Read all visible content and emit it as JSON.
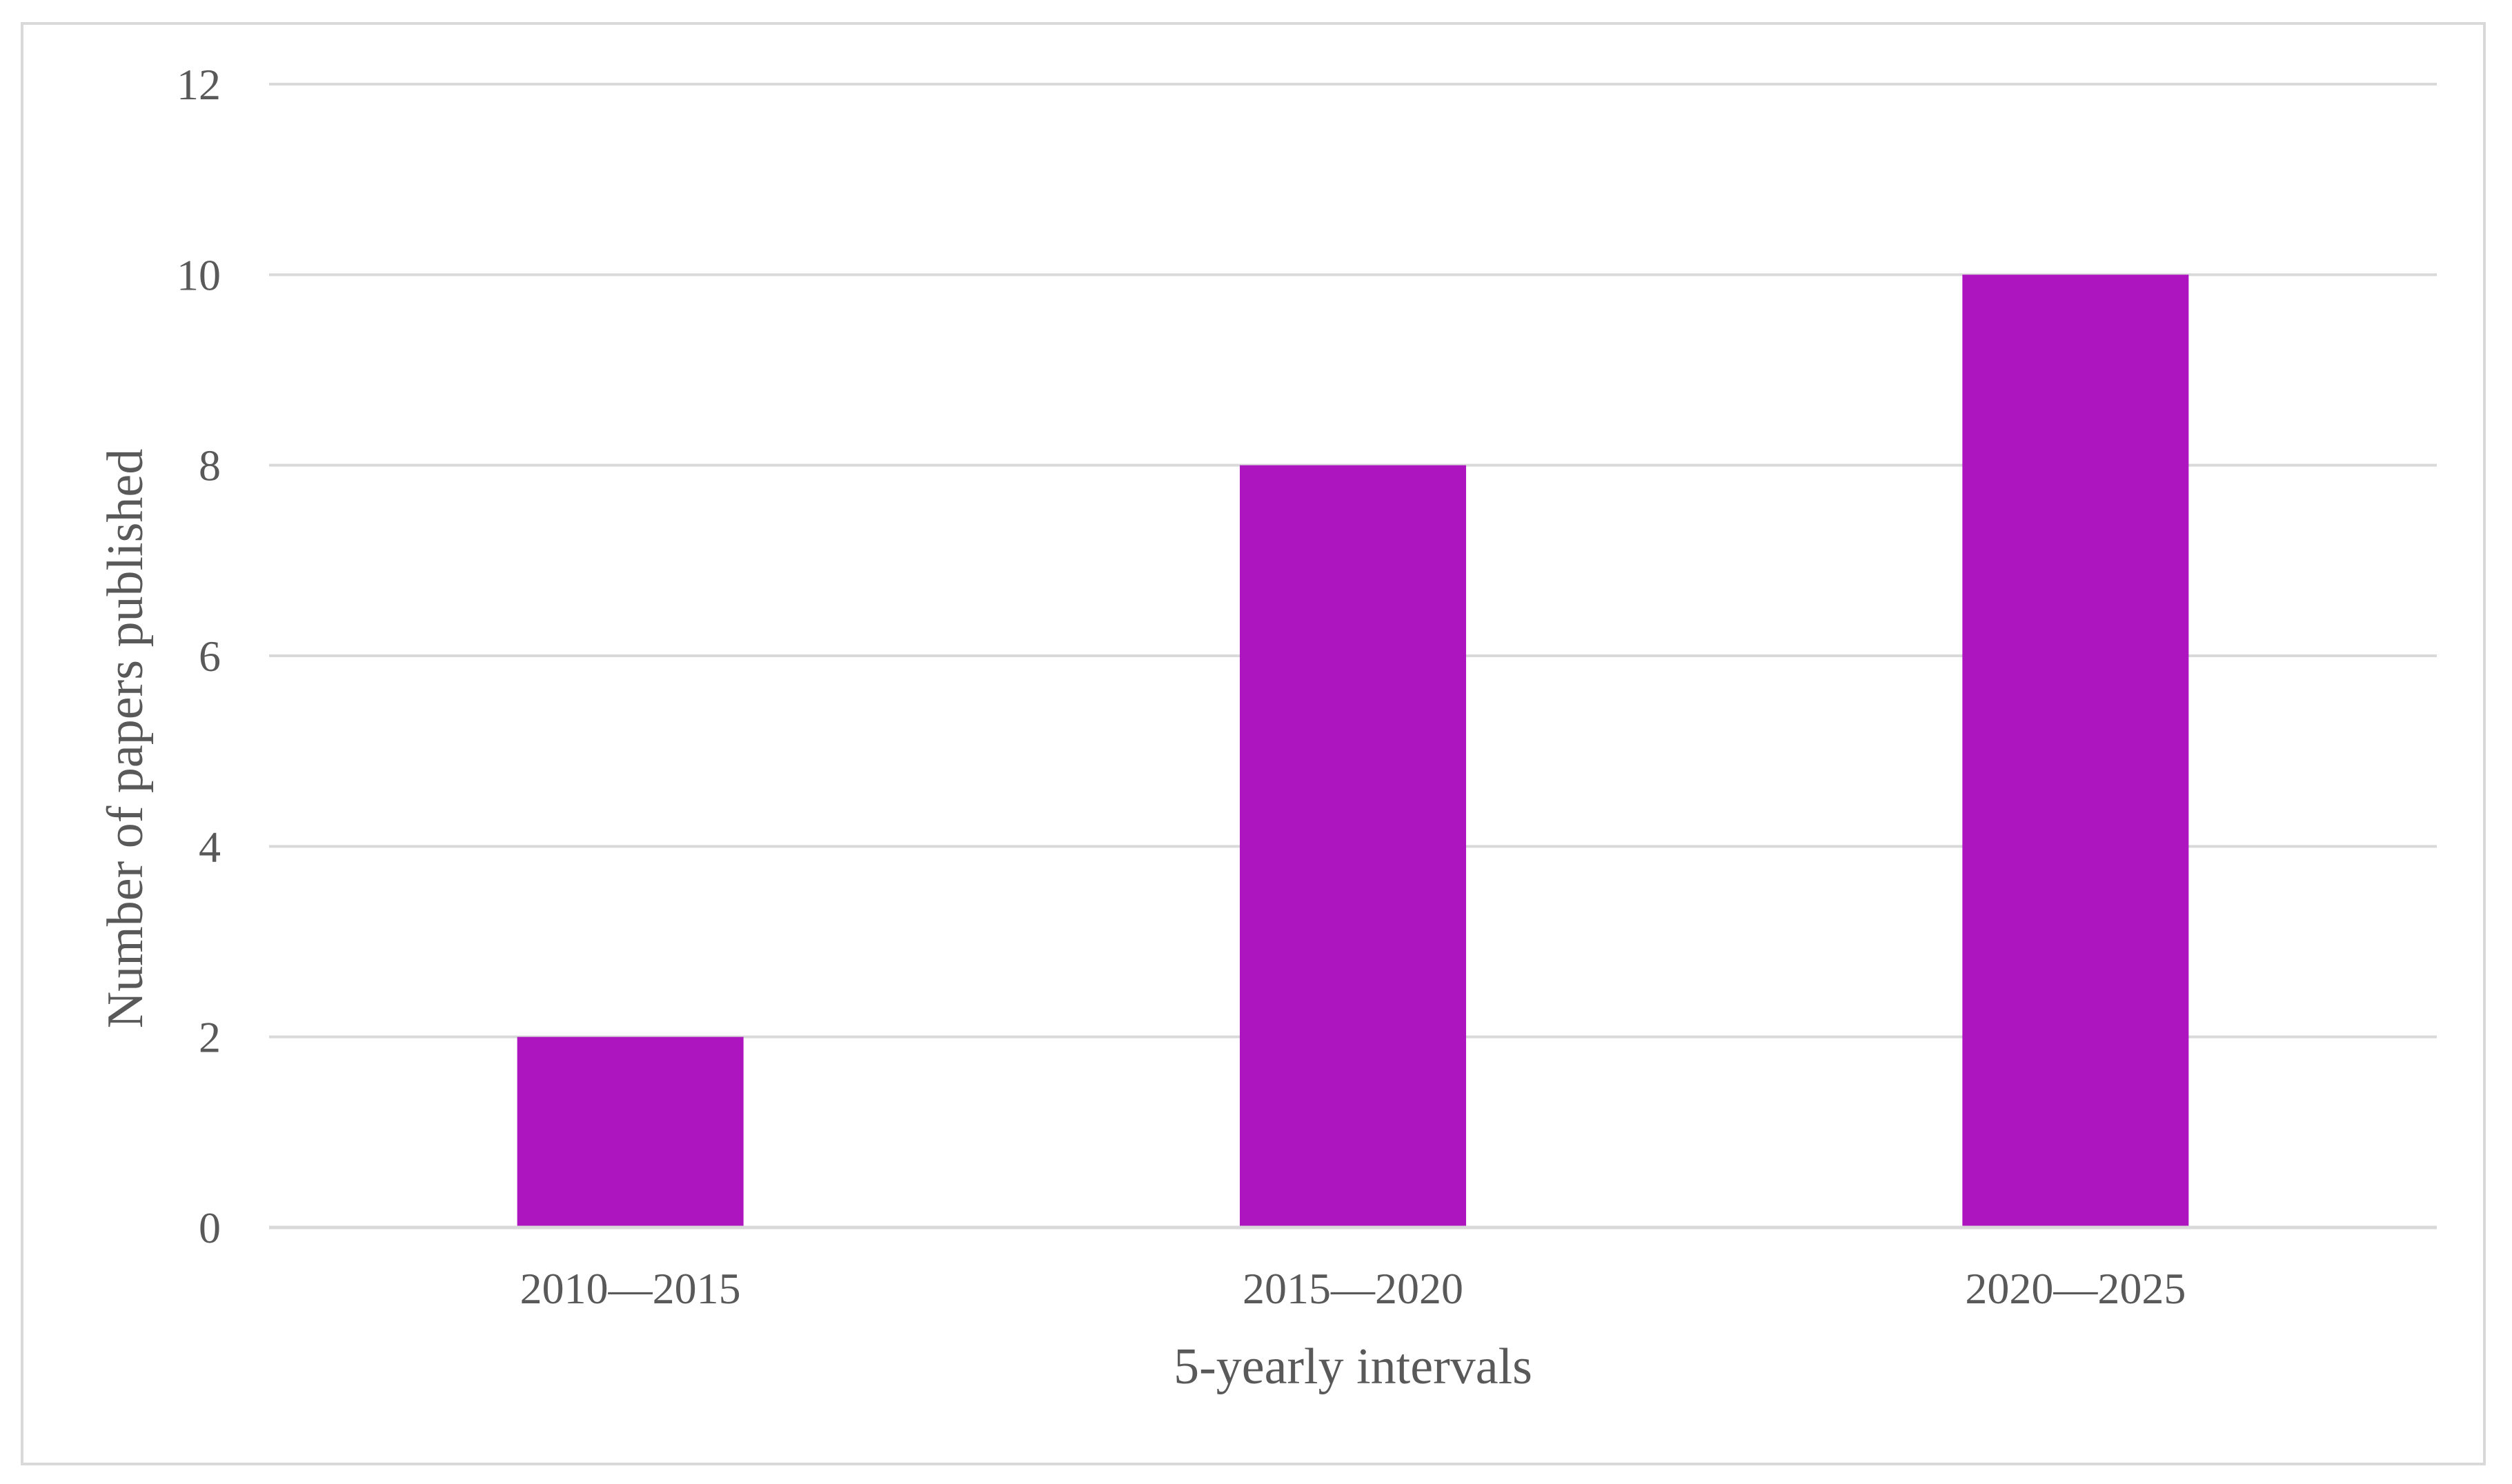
{
  "chart_data": {
    "type": "bar",
    "categories": [
      "2010—2015",
      "2015—2020",
      "2020—2025"
    ],
    "values": [
      2,
      8,
      10
    ],
    "title": "",
    "xlabel": "5-yearly intervals",
    "ylabel": "Number of papers published",
    "ylim": [
      0,
      12
    ],
    "yticks": [
      0,
      2,
      4,
      6,
      8,
      10,
      12
    ],
    "grid": true,
    "legend": "none",
    "bar_color": "#ad16bf"
  }
}
